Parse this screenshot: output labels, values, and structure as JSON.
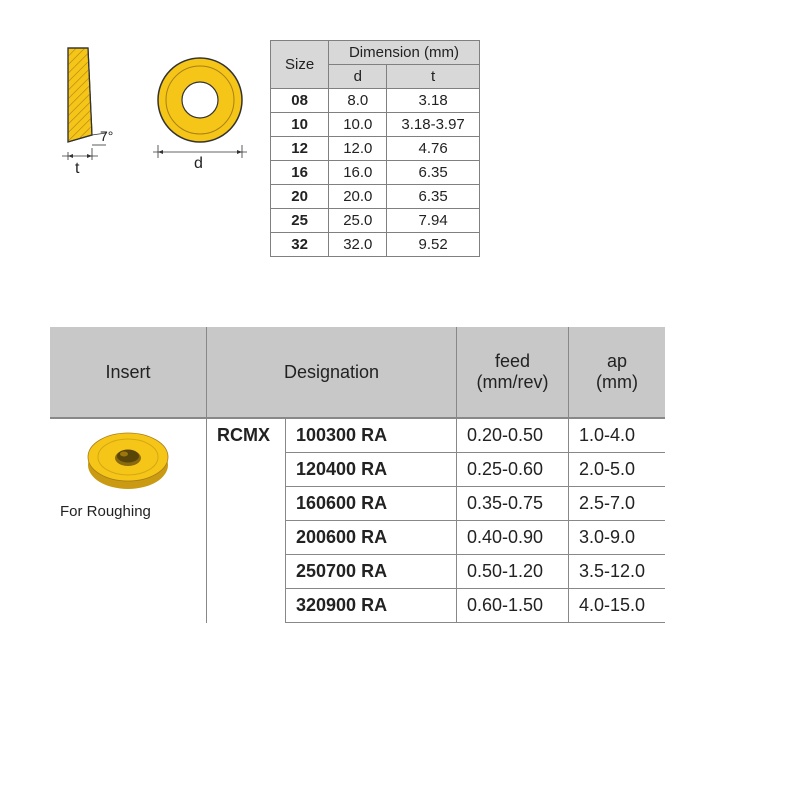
{
  "colors": {
    "insert_fill": "#f5c518",
    "insert_dark": "#a87e1a",
    "insert_edge": "#7a5a0a",
    "header_bg": "#c8c8c8",
    "dim_header_bg": "#d8d8d8",
    "border": "#808080",
    "text": "#222222"
  },
  "side_view": {
    "angle": "7°",
    "label": "t"
  },
  "front_view": {
    "label": "d"
  },
  "dim_table": {
    "headers": {
      "size": "Size",
      "dimension": "Dimension (mm)",
      "d": "d",
      "t": "t"
    },
    "rows": [
      {
        "size": "08",
        "d": "8.0",
        "t": "3.18"
      },
      {
        "size": "10",
        "d": "10.0",
        "t": "3.18-3.97"
      },
      {
        "size": "12",
        "d": "12.0",
        "t": "4.76"
      },
      {
        "size": "16",
        "d": "16.0",
        "t": "6.35"
      },
      {
        "size": "20",
        "d": "20.0",
        "t": "6.35"
      },
      {
        "size": "25",
        "d": "25.0",
        "t": "7.94"
      },
      {
        "size": "32",
        "d": "32.0",
        "t": "9.52"
      }
    ]
  },
  "main_table": {
    "headers": {
      "insert": "Insert",
      "designation": "Designation",
      "feed": "feed\n(mm/rev)",
      "ap": "ap\n(mm)"
    },
    "insert_caption": "For Roughing",
    "prefix": "RCMX",
    "rows": [
      {
        "designation": "100300 RA",
        "feed": "0.20-0.50",
        "ap": "1.0-4.0"
      },
      {
        "designation": "120400 RA",
        "feed": "0.25-0.60",
        "ap": "2.0-5.0"
      },
      {
        "designation": "160600 RA",
        "feed": "0.35-0.75",
        "ap": "2.5-7.0"
      },
      {
        "designation": "200600 RA",
        "feed": "0.40-0.90",
        "ap": "3.0-9.0"
      },
      {
        "designation": "250700 RA",
        "feed": "0.50-1.20",
        "ap": "3.5-12.0"
      },
      {
        "designation": "320900 RA",
        "feed": "0.60-1.50",
        "ap": "4.0-15.0"
      }
    ]
  }
}
